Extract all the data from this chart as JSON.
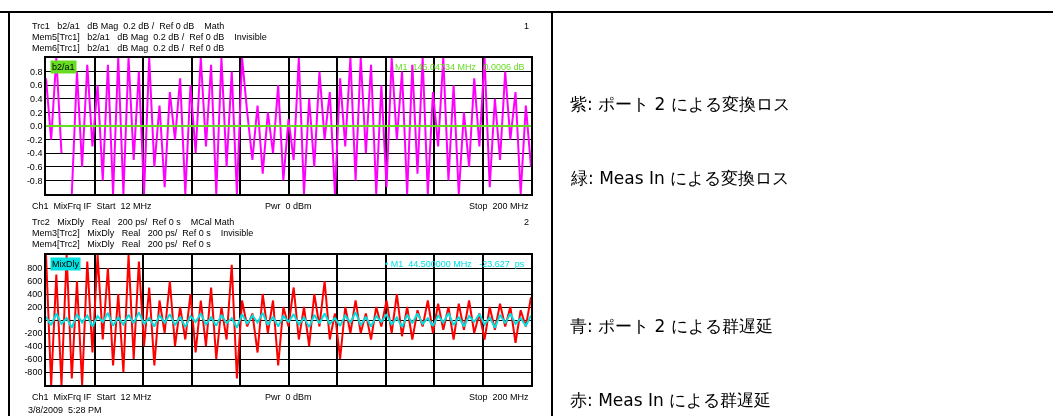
{
  "chart_data": [
    {
      "type": "line",
      "categories": [
        null,
        null,
        null,
        null,
        null,
        null,
        null,
        null,
        null,
        null,
        null,
        null,
        null,
        null,
        null,
        null,
        null,
        null,
        null,
        null,
        null,
        null,
        null,
        null,
        null,
        null,
        null,
        null,
        null,
        null,
        null,
        null,
        null,
        null,
        null,
        null,
        null,
        null,
        null,
        null,
        null,
        null,
        null,
        null,
        null,
        null,
        null,
        null,
        null,
        null,
        null,
        null,
        null,
        null,
        null,
        null,
        null,
        null,
        null,
        null,
        null,
        null,
        null,
        null,
        null,
        null,
        null,
        null,
        null,
        null,
        null,
        null,
        null,
        null,
        null,
        null,
        null,
        null,
        null,
        null,
        null,
        null,
        null,
        null,
        null,
        null,
        null,
        null,
        null,
        null,
        null,
        null,
        null,
        null,
        null
      ],
      "series": [
        {
          "color": "#ff00ff",
          "values": [
            0.7,
            -0.2,
            1,
            -0.4,
            null,
            -1,
            0.8,
            -0.6,
            0.9,
            -0.3,
            0.6,
            -0.8,
            0.9,
            -1,
            1,
            -1,
            1,
            -0.5,
            0.8,
            -1,
            1,
            -0.6,
            0.3,
            -0.9,
            0.5,
            -0.2,
            0.7,
            -1,
            0.6,
            -0.4,
            1,
            -0.3,
            0.9,
            -1,
            1,
            -0.6,
            0.8,
            -1,
            1,
            0.2,
            -0.5,
            0.3,
            -0.7,
            0.2,
            -0.4,
            0.6,
            -0.8,
            0.1,
            -0.5,
            1,
            -1,
            0.4,
            -0.6,
            0.8,
            -0.2,
            0.5,
            -1,
            0.7,
            -0.3,
            1,
            -0.8,
            1,
            -0.4,
            0.9,
            -1,
            0.6,
            -0.9,
            1,
            -0.2,
            0.8,
            -1,
            0.9,
            -0.7,
            1,
            -1,
            0.5,
            -0.3,
            1,
            -0.8,
            0.6,
            -1,
            0.2,
            -0.6,
            0.7,
            -0.3,
            1,
            -0.9,
            0.4,
            -0.5,
            0.8,
            -0.2,
            0.5,
            -1,
            0.3,
            -0.6
          ]
        },
        {
          "color": "#66dd22",
          "values": [
            0,
            0,
            0,
            0,
            0,
            0,
            0,
            0,
            0,
            0,
            0,
            0,
            0,
            0,
            0,
            0,
            0,
            0,
            0,
            0,
            0,
            0,
            0,
            0,
            0,
            0,
            0,
            0,
            0,
            0,
            0,
            0,
            0,
            0,
            0,
            0,
            0,
            0,
            0,
            0,
            0,
            0,
            0,
            0,
            0,
            0,
            0,
            0,
            0,
            0,
            0,
            0,
            0,
            0,
            0,
            0,
            0,
            0,
            0,
            0,
            0,
            0,
            0,
            0,
            0,
            0,
            0,
            0,
            0,
            0,
            0,
            0,
            0,
            0,
            0,
            0,
            0,
            0,
            0,
            0,
            0,
            0,
            0,
            0,
            0,
            0,
            0,
            0,
            0,
            0,
            0,
            0,
            0,
            0,
            0
          ]
        }
      ],
      "ylim": [
        -1,
        1
      ],
      "yticks": [
        {
          "value": -1,
          "label": null
        },
        -0.8,
        -0.6,
        -0.4,
        -0.2,
        {
          "value": 0,
          "label": "0.0"
        },
        0.2,
        0.4,
        0.6,
        0.8,
        {
          "value": 1,
          "label": null
        }
      ],
      "tick_labels": "y",
      "grid": true,
      "annotations": [
        "Trc1   b2/a1   dB Mag  0.2 dB /  Ref 0 dB    Math",
        "Mem5[Trc1]   b2/a1   dB Mag  0.2 dB /  Ref 0 dB    Invisible",
        "Mem6[Trc1]   b2/a1   dB Mag  0.2 dB /  Ref 0 dB",
        "1",
        "b2/a1",
        "M1  146.04734 MHz   0.0006 dB",
        "Ch1  MixFrq IF  Start  12 MHz",
        "Pwr  0 dBm",
        "Stop  200 MHz"
      ]
    },
    {
      "type": "line",
      "categories": [
        null,
        null,
        null,
        null,
        null,
        null,
        null,
        null,
        null,
        null,
        null,
        null,
        null,
        null,
        null,
        null,
        null,
        null,
        null,
        null,
        null,
        null,
        null,
        null,
        null,
        null,
        null,
        null,
        null,
        null,
        null,
        null,
        null,
        null,
        null,
        null,
        null,
        null,
        null,
        null,
        null,
        null,
        null,
        null,
        null,
        null,
        null,
        null,
        null,
        null,
        null,
        null,
        null,
        null,
        null,
        null,
        null,
        null,
        null,
        null,
        null,
        null,
        null,
        null,
        null,
        null,
        null,
        null,
        null,
        null,
        null,
        null,
        null,
        null,
        null,
        null,
        null,
        null,
        null,
        null,
        null,
        null,
        null,
        null,
        null,
        null,
        null,
        null,
        null,
        null,
        null,
        null,
        null,
        null,
        null
      ],
      "series": [
        {
          "color": "#ff0000",
          "values": [
            1000,
            -1000,
            700,
            -1000,
            1000,
            -900,
            600,
            -1000,
            900,
            -500,
            1000,
            -300,
            800,
            -700,
            400,
            -800,
            1000,
            -600,
            900,
            -400,
            500,
            -700,
            300,
            -200,
            600,
            -400,
            200,
            -300,
            400,
            -500,
            300,
            -400,
            500,
            -600,
            200,
            -300,
            850,
            -900,
            300,
            -100,
            100,
            -500,
            400,
            -200,
            300,
            -700,
            200,
            -100,
            500,
            -300,
            200,
            -400,
            400,
            -100,
            600,
            -300,
            100,
            -600,
            200,
            -200,
            300,
            -200,
            100,
            -300,
            200,
            -100,
            300,
            -200,
            400,
            -250,
            200,
            -300,
            150,
            -100,
            300,
            -200,
            250,
            -150,
            200,
            -300,
            250,
            -150,
            300,
            -200,
            100,
            -300,
            200,
            -150,
            250,
            -100,
            200,
            -350,
            150,
            -100,
            350
          ]
        },
        {
          "color": "#00e0e0",
          "values": [
            50,
            -80,
            100,
            -60,
            30,
            -120,
            90,
            -40,
            70,
            -100,
            60,
            -30,
            110,
            -90,
            40,
            -70,
            80,
            -50,
            120,
            -60,
            30,
            -100,
            70,
            -40,
            90,
            -80,
            50,
            -110,
            60,
            -30,
            100,
            -70,
            40,
            -90,
            80,
            -50,
            30,
            -120,
            90,
            -60,
            70,
            -40,
            110,
            -80,
            50,
            -100,
            60,
            -30,
            90,
            -70,
            40,
            -110,
            80,
            -50,
            100,
            -60,
            30,
            -90,
            70,
            -40,
            120,
            -80,
            50,
            -100,
            60,
            -30,
            90,
            -70,
            40,
            -110,
            80,
            -50,
            100,
            -60,
            30,
            -90,
            70,
            -40,
            110,
            -80,
            50,
            -100,
            60,
            -30,
            90,
            -70,
            40,
            -120,
            80,
            -50,
            100,
            -60,
            30,
            -90,
            70
          ]
        }
      ],
      "ylim": [
        -1000,
        1000
      ],
      "yticks": [
        {
          "value": -1000,
          "label": null
        },
        -800,
        -600,
        -400,
        -200,
        0,
        200,
        400,
        600,
        800,
        {
          "value": 1000,
          "label": null
        }
      ],
      "tick_labels": "y",
      "grid": true,
      "annotations": [
        "Trc2   MixDly   Real   200 ps/  Ref 0 s    MCal Math",
        "Mem3[Trc2]   MixDly   Real   200 ps/  Ref 0 s    Invisible",
        "Mem4[Trc2]   MixDly   Real   200 ps/  Ref 0 s",
        "2",
        "MixDly",
        "• M1  44.500000 MHz   -23.627  ps",
        "Ch1  MixFrq IF  Start  12 MHz",
        "Pwr  0 dBm",
        "Stop  200 MHz",
        "3/8/2009  5:28 PM"
      ]
    },
    {
      "type": "other",
      "annotations": [
        "紫: ポート 2 による変換ロス",
        "緑: Meas In による変換ロス",
        "青: ポート 2 による群遅延",
        "赤: Meas In による群遅延"
      ]
    }
  ]
}
